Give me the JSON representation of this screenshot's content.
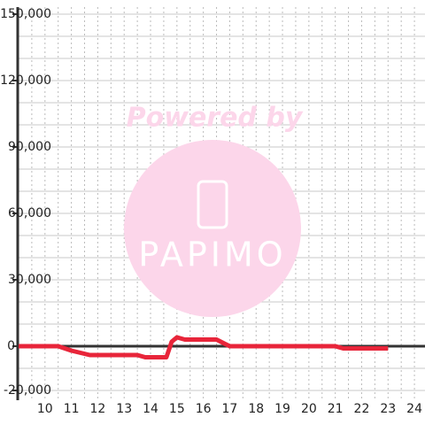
{
  "chart_data": {
    "type": "line",
    "watermark": {
      "line1": "Powered by",
      "line2": "PAPIMO"
    },
    "x": [
      9,
      10.5,
      11,
      11.7,
      13.5,
      13.8,
      14.6,
      14.8,
      15,
      15.3,
      16.5,
      17,
      21,
      21.3,
      23
    ],
    "series": [
      {
        "color": "#e8253a",
        "values": [
          0,
          0,
          -2000,
          -4000,
          -4000,
          -5000,
          -5000,
          2000,
          4000,
          3000,
          3000,
          0,
          0,
          -1000,
          -1000
        ]
      }
    ],
    "xlim": [
      9,
      24.4
    ],
    "xticks": [
      10,
      11,
      12,
      13,
      14,
      15,
      16,
      17,
      18,
      19,
      20,
      21,
      22,
      23,
      24
    ],
    "x_minor_grid": [
      9.5,
      10.5,
      11.5,
      12.5,
      13.5,
      14.5,
      15.5,
      16.5,
      17.5,
      18.5,
      19.5,
      20.5,
      21.5,
      22.5,
      23.5
    ],
    "ylim": [
      -20000,
      150000
    ],
    "yticks": [
      {
        "value": -20000,
        "label": "-20,000"
      },
      0,
      {
        "value": 30000,
        "label": "30,000"
      },
      {
        "value": 60000,
        "label": "60,000"
      },
      {
        "value": 90000,
        "label": "90,000"
      },
      {
        "value": 120000,
        "label": "120,000"
      },
      {
        "value": 150000,
        "label": "150,000"
      }
    ],
    "y_minor_grid": [
      -10000,
      10000,
      20000,
      40000,
      50000,
      70000,
      80000,
      100000,
      110000,
      130000,
      140000
    ],
    "grid": true
  }
}
